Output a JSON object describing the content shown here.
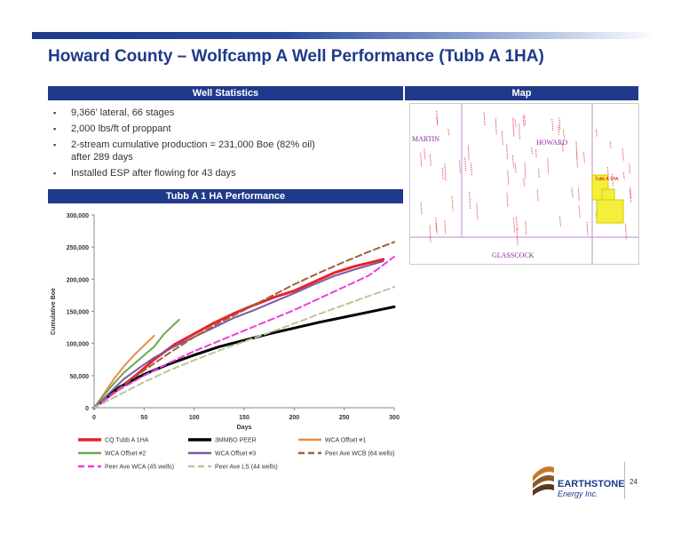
{
  "title": "Howard County – Wolfcamp A Well Performance (Tubb A 1HA)",
  "well_stats": {
    "header": "Well Statistics",
    "items": [
      "9,366’ lateral, 66 stages",
      "2,000 lbs/ft of proppant",
      "2-stream cumulative production = 231,000 Boe (82% oil) after 289 days",
      "Installed ESP after flowing for 43 days"
    ]
  },
  "map": {
    "header": "Map",
    "labels": {
      "martin": "MARTIN",
      "howard": "HOWARD",
      "glasscock": "GLASSCOCK",
      "well": "Tubb A 1HA"
    }
  },
  "perf_header": "Tubb A 1 HA Performance",
  "chart_data": {
    "type": "line",
    "xlabel": "Days",
    "ylabel": "Cumulative Boe",
    "xlim": [
      0,
      300
    ],
    "ylim": [
      0,
      300000
    ],
    "xticks": [
      0,
      50,
      100,
      150,
      200,
      250,
      300
    ],
    "yticks": [
      0,
      50000,
      100000,
      150000,
      200000,
      250000,
      300000
    ],
    "ytick_labels": [
      "0",
      "50,000",
      "100,000",
      "150,000",
      "200,000",
      "250,000",
      "300,000"
    ],
    "legend_position": "bottom",
    "series": [
      {
        "name": "CQ Tubb A 1HA",
        "color": "#e8222a",
        "dash": "",
        "width": 3,
        "x": [
          0,
          10,
          25,
          43,
          60,
          80,
          100,
          120,
          140,
          160,
          180,
          200,
          220,
          240,
          260,
          289
        ],
        "y": [
          0,
          12000,
          30000,
          52000,
          75000,
          98000,
          115000,
          132000,
          147000,
          160000,
          172000,
          182000,
          196000,
          210000,
          220000,
          231000
        ]
      },
      {
        "name": "3MMBO PEER",
        "color": "#000000",
        "dash": "",
        "width": 3,
        "x": [
          0,
          25,
          50,
          75,
          100,
          125,
          150,
          175,
          200,
          225,
          250,
          275,
          300
        ],
        "y": [
          0,
          32000,
          52000,
          68000,
          82000,
          95000,
          105000,
          115000,
          124000,
          133000,
          141000,
          149000,
          157000
        ]
      },
      {
        "name": "WCA Offset #1",
        "color": "#f08a3c",
        "dash": "",
        "width": 2,
        "x": [
          0,
          10,
          20,
          30,
          40,
          50,
          60
        ],
        "y": [
          0,
          22000,
          45000,
          65000,
          82000,
          97000,
          112000
        ]
      },
      {
        "name": "WCA Offset #2",
        "color": "#6aa84f",
        "dash": "",
        "width": 2,
        "x": [
          0,
          10,
          20,
          30,
          45,
          60,
          70,
          85
        ],
        "y": [
          0,
          20000,
          38000,
          55000,
          75000,
          95000,
          115000,
          137000
        ]
      },
      {
        "name": "WCA Offset #3",
        "color": "#7a5aa6",
        "dash": "",
        "width": 2,
        "x": [
          0,
          10,
          20,
          30,
          45,
          60,
          80,
          100,
          120,
          140,
          160,
          180,
          200,
          220,
          240,
          260,
          289
        ],
        "y": [
          0,
          15000,
          30000,
          45000,
          62000,
          78000,
          95000,
          110000,
          125000,
          140000,
          152000,
          165000,
          178000,
          192000,
          205000,
          215000,
          228000
        ]
      },
      {
        "name": "Peer Ave WCB (64 wells)",
        "color": "#a0603c",
        "dash": "7,4",
        "width": 2,
        "x": [
          0,
          25,
          50,
          75,
          100,
          125,
          150,
          175,
          200,
          225,
          250,
          275,
          300
        ],
        "y": [
          0,
          30000,
          58000,
          85000,
          110000,
          132000,
          152000,
          172000,
          192000,
          210000,
          227000,
          243000,
          258000
        ]
      },
      {
        "name": "Peer Ave WCA (45 wells)",
        "color": "#f03ce0",
        "dash": "7,4",
        "width": 2,
        "x": [
          0,
          25,
          50,
          75,
          100,
          125,
          150,
          175,
          200,
          225,
          250,
          275,
          300
        ],
        "y": [
          0,
          28000,
          50000,
          70000,
          88000,
          104000,
          120000,
          136000,
          152000,
          170000,
          188000,
          206000,
          235000
        ]
      },
      {
        "name": "Peer Ave LS (44 wells)",
        "color": "#b5c99a",
        "dash": "7,4",
        "width": 2,
        "x": [
          0,
          25,
          50,
          75,
          100,
          125,
          150,
          175,
          200,
          225,
          250,
          275,
          300
        ],
        "y": [
          0,
          20000,
          40000,
          58000,
          74000,
          89000,
          103000,
          117000,
          131000,
          146000,
          160000,
          174000,
          188000
        ]
      }
    ]
  },
  "logo": {
    "brand": "EARTHSTONE",
    "sub": "Energy Inc."
  },
  "page_number": "24"
}
